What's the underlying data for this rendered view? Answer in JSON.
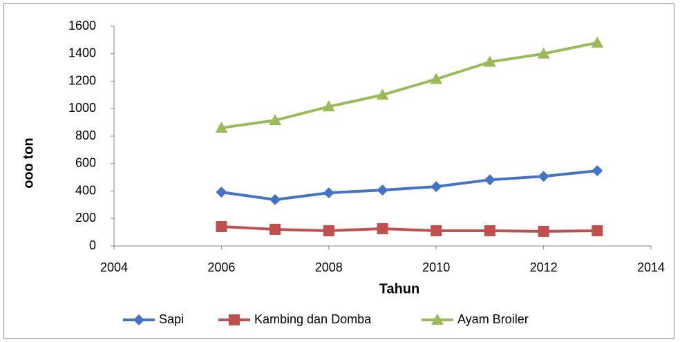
{
  "chart_data": {
    "type": "line",
    "xlabel": "Tahun",
    "ylabel": "ooo ton",
    "x": [
      2006,
      2007,
      2008,
      2009,
      2010,
      2011,
      2012,
      2013
    ],
    "series": [
      {
        "name": "Sapi",
        "color": "#4472c4",
        "marker": "diamond",
        "values": [
          392,
          337,
          387,
          407,
          432,
          482,
          507,
          548
        ]
      },
      {
        "name": "Kambing dan Domba",
        "color": "#c0504d",
        "marker": "square",
        "values": [
          141,
          121,
          111,
          126,
          111,
          111,
          106,
          111
        ]
      },
      {
        "name": "Ayam Broiler",
        "color": "#9bbb59",
        "marker": "triangle",
        "values": [
          860,
          915,
          1015,
          1100,
          1215,
          1340,
          1400,
          1480
        ]
      }
    ],
    "xlim": [
      2004,
      2014
    ],
    "xticks": [
      2004,
      2006,
      2008,
      2010,
      2012,
      2014
    ],
    "ylim": [
      0,
      1600
    ],
    "yticks": [
      0,
      200,
      400,
      600,
      800,
      1000,
      1200,
      1400,
      1600
    ],
    "grid": false,
    "legend": "bottom"
  }
}
